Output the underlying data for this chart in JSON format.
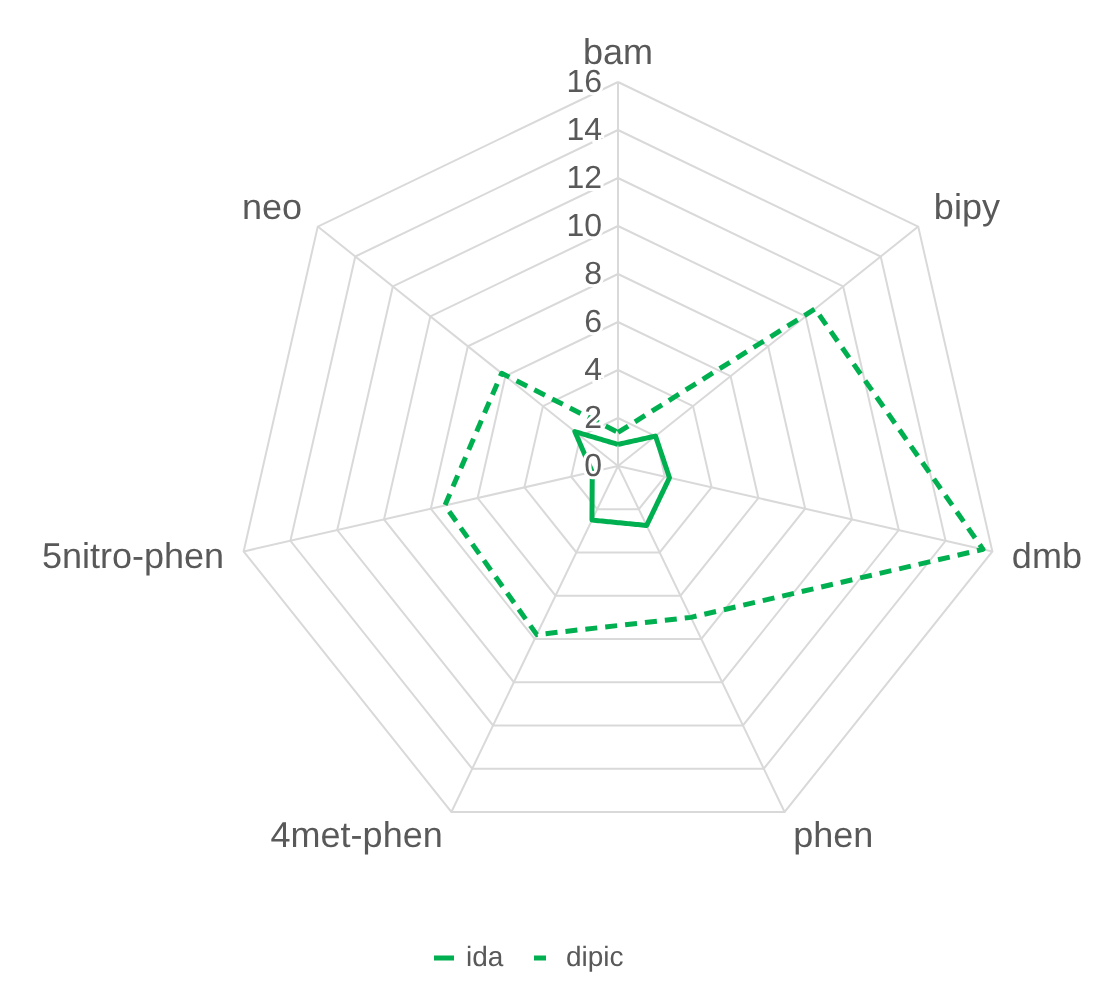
{
  "chart_data": {
    "type": "radar",
    "categories": [
      "bam",
      "bipy",
      "dmb",
      "phen",
      "4met-phen",
      "5nitro-phen",
      "neo"
    ],
    "series": [
      {
        "name": "ida",
        "color": "#00b050",
        "line_style": "solid",
        "values": [
          0.9,
          2.0,
          2.2,
          2.75,
          2.5,
          1.1,
          2.3
        ]
      },
      {
        "name": "dipic",
        "color": "#00b050",
        "line_style": "dashed",
        "values": [
          1.4,
          10.5,
          15.6,
          7.0,
          7.8,
          7.4,
          6.2
        ]
      }
    ],
    "ylim": [
      0,
      16
    ],
    "yticks": [
      0,
      2,
      4,
      6,
      8,
      10,
      12,
      14,
      16
    ],
    "grid": true,
    "legend": "bottom",
    "marker": "none"
  }
}
